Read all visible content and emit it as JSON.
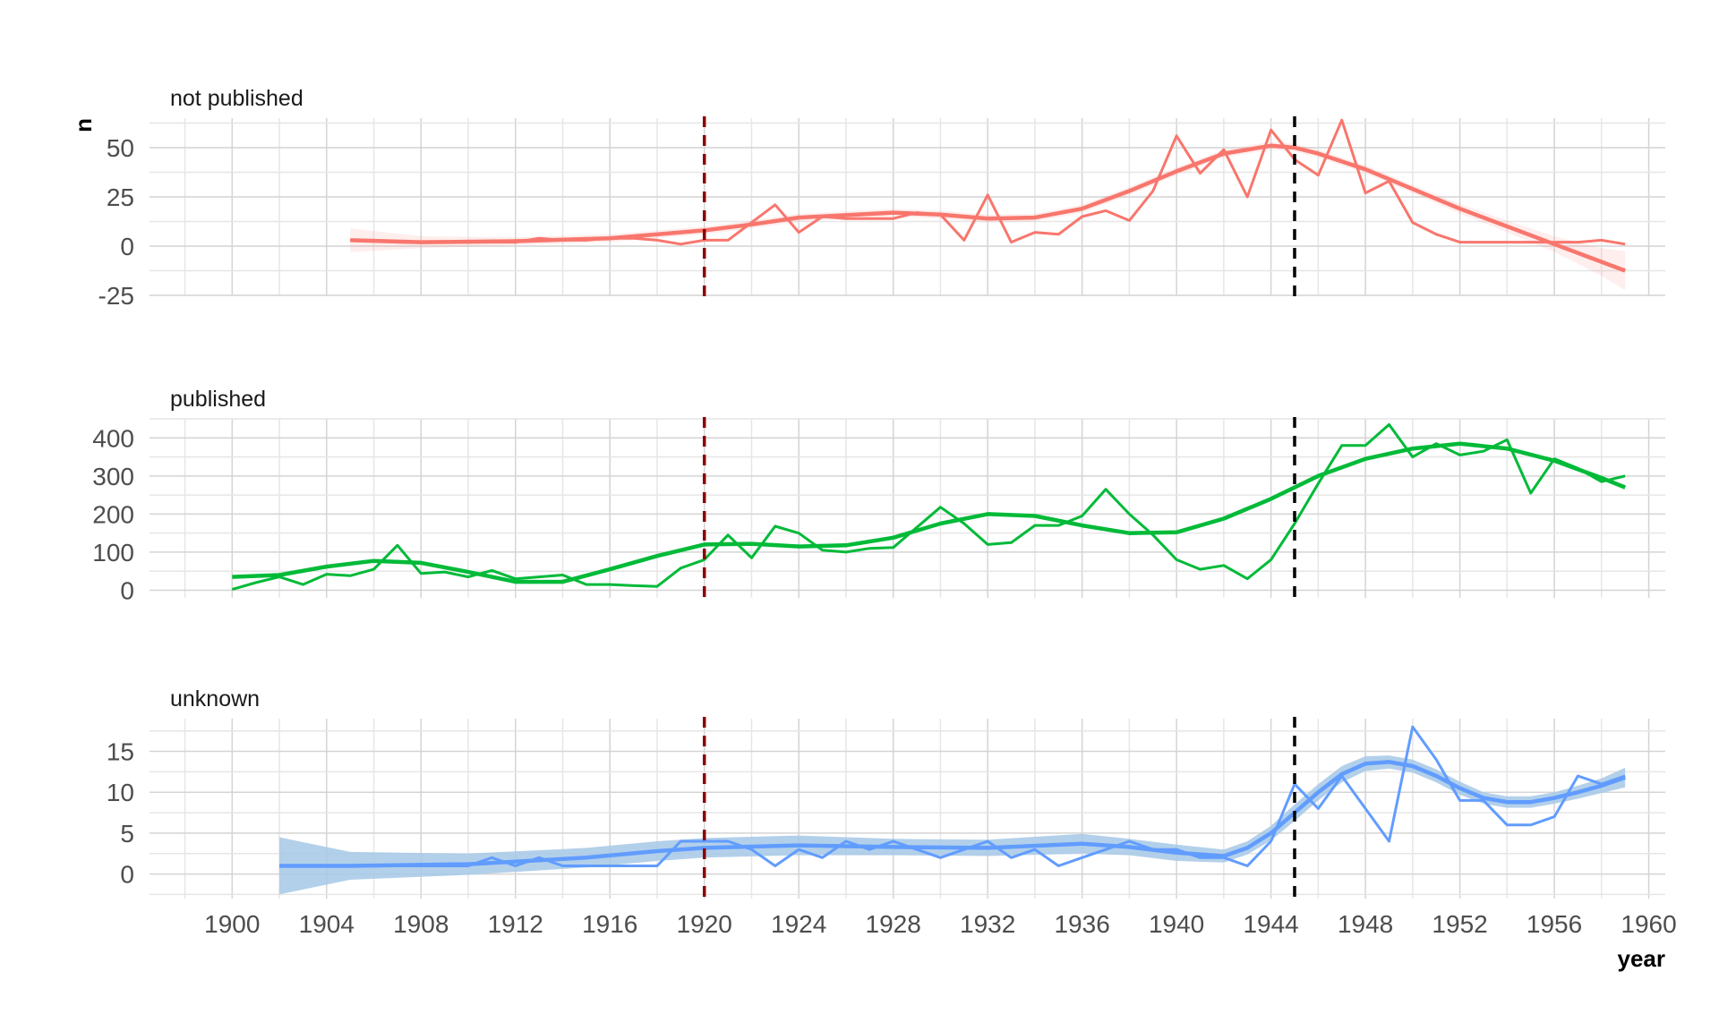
{
  "chart_data": {
    "type": "line",
    "xlabel": "year",
    "ylabel": "n",
    "xlim": [
      1900,
      1960
    ],
    "x_ticks": [
      1900,
      1904,
      1908,
      1912,
      1916,
      1920,
      1924,
      1928,
      1932,
      1936,
      1940,
      1944,
      1948,
      1952,
      1956,
      1960
    ],
    "grid": true,
    "vlines": [
      {
        "x": 1920,
        "color": "#8B0000",
        "style": "dashed"
      },
      {
        "x": 1945,
        "color": "#000000",
        "style": "dashed"
      }
    ],
    "panels": [
      {
        "title": "not published",
        "color": "#F8766D",
        "ylim": [
          -25,
          65
        ],
        "y_ticks": [
          -25,
          0,
          25,
          50
        ],
        "y_tick_labels": [
          "-25",
          "0",
          "25",
          "50"
        ],
        "raw": {
          "x": [
            1905,
            1906,
            1907,
            1908,
            1909,
            1910,
            1911,
            1912,
            1913,
            1914,
            1915,
            1916,
            1917,
            1918,
            1919,
            1920,
            1921,
            1922,
            1923,
            1924,
            1925,
            1926,
            1927,
            1928,
            1929,
            1930,
            1931,
            1932,
            1933,
            1934,
            1935,
            1936,
            1937,
            1938,
            1939,
            1940,
            1941,
            1942,
            1943,
            1944,
            1945,
            1946,
            1947,
            1948,
            1949,
            1950,
            1951,
            1952,
            1953,
            1954,
            1955,
            1956,
            1957,
            1958,
            1959
          ],
          "y": [
            3,
            3,
            2,
            2,
            2,
            2,
            2,
            2,
            4,
            3,
            3,
            4,
            4,
            3,
            1,
            3,
            3,
            12,
            21,
            7,
            15,
            14,
            14,
            14,
            17,
            16,
            3,
            26,
            2,
            7,
            6,
            15,
            18,
            13,
            28,
            56,
            37,
            49,
            25,
            59,
            44,
            36,
            64,
            27,
            33,
            12,
            6,
            2,
            2,
            2,
            2,
            2,
            2,
            3,
            1
          ]
        },
        "smooth": {
          "x": [
            1905,
            1908,
            1912,
            1916,
            1919,
            1920,
            1922,
            1924,
            1928,
            1930,
            1932,
            1934,
            1936,
            1938,
            1940,
            1942,
            1944,
            1945,
            1946,
            1948,
            1950,
            1952,
            1954,
            1956,
            1958,
            1959
          ],
          "y": [
            3,
            2,
            2.5,
            4,
            7,
            8,
            11,
            14.5,
            17,
            16,
            14,
            14.5,
            19,
            28,
            38,
            47,
            51,
            50,
            47,
            39,
            29,
            19,
            10,
            1,
            -8,
            -12.5
          ],
          "band_halfwidth": [
            6,
            3,
            2,
            2,
            2,
            2,
            2,
            2,
            2,
            2,
            2,
            2,
            2,
            2,
            2,
            2,
            2,
            2,
            2,
            2,
            2,
            2.5,
            3,
            4,
            7,
            10
          ]
        }
      },
      {
        "title": "published",
        "color": "#00BA38",
        "ylim": [
          -20,
          450
        ],
        "y_ticks": [
          0,
          100,
          200,
          300,
          400
        ],
        "y_tick_labels": [
          "0",
          "100",
          "200",
          "300",
          "400"
        ],
        "raw": {
          "x": [
            1900,
            1901,
            1902,
            1903,
            1904,
            1905,
            1906,
            1907,
            1908,
            1909,
            1910,
            1911,
            1912,
            1913,
            1914,
            1915,
            1916,
            1917,
            1918,
            1919,
            1920,
            1921,
            1922,
            1923,
            1924,
            1925,
            1926,
            1927,
            1928,
            1929,
            1930,
            1931,
            1932,
            1933,
            1934,
            1935,
            1936,
            1937,
            1938,
            1939,
            1940,
            1941,
            1942,
            1943,
            1944,
            1945,
            1946,
            1947,
            1948,
            1949,
            1950,
            1951,
            1952,
            1953,
            1954,
            1955,
            1956,
            1957,
            1958,
            1959
          ],
          "y": [
            2,
            20,
            35,
            15,
            42,
            38,
            55,
            118,
            44,
            48,
            35,
            52,
            30,
            35,
            40,
            15,
            15,
            12,
            10,
            58,
            80,
            145,
            85,
            168,
            150,
            105,
            100,
            110,
            112,
            165,
            218,
            175,
            120,
            125,
            170,
            170,
            195,
            265,
            200,
            145,
            80,
            55,
            65,
            30,
            80,
            175,
            280,
            380,
            380,
            435,
            350,
            385,
            355,
            365,
            395,
            255,
            345,
            320,
            285,
            300
          ]
        },
        "smooth": {
          "x": [
            1900,
            1902,
            1904,
            1906,
            1908,
            1910,
            1912,
            1914,
            1916,
            1918,
            1920,
            1922,
            1924,
            1926,
            1928,
            1930,
            1932,
            1934,
            1936,
            1938,
            1940,
            1942,
            1944,
            1946,
            1948,
            1950,
            1952,
            1954,
            1956,
            1958,
            1959
          ],
          "y": [
            35,
            40,
            62,
            77,
            72,
            48,
            22,
            22,
            55,
            90,
            120,
            122,
            115,
            118,
            138,
            175,
            200,
            195,
            170,
            150,
            152,
            188,
            240,
            300,
            345,
            372,
            385,
            372,
            340,
            295,
            270
          ]
        }
      },
      {
        "title": "unknown",
        "color": "#619CFF",
        "band_color": "#A6C8E6",
        "ylim": [
          -3,
          19
        ],
        "y_ticks": [
          0,
          5,
          10,
          15
        ],
        "y_tick_labels": [
          "0",
          "5",
          "10",
          "15"
        ],
        "raw": {
          "x": [
            1902,
            1903,
            1904,
            1905,
            1906,
            1907,
            1908,
            1909,
            1910,
            1911,
            1912,
            1913,
            1914,
            1915,
            1916,
            1917,
            1918,
            1919,
            1920,
            1921,
            1922,
            1923,
            1924,
            1925,
            1926,
            1927,
            1928,
            1929,
            1930,
            1931,
            1932,
            1933,
            1934,
            1935,
            1936,
            1937,
            1938,
            1939,
            1940,
            1941,
            1942,
            1943,
            1944,
            1945,
            1946,
            1947,
            1948,
            1949,
            1950,
            1951,
            1952,
            1953,
            1954,
            1955,
            1956,
            1957,
            1958,
            1959
          ],
          "y": [
            1,
            1,
            1,
            1,
            1,
            1,
            1,
            1,
            1,
            2,
            1,
            2,
            1,
            1,
            1,
            1,
            1,
            4,
            4,
            4,
            3,
            1,
            3,
            2,
            4,
            3,
            4,
            3,
            2,
            3,
            4,
            2,
            3,
            1,
            2,
            3,
            4,
            3,
            3,
            2,
            2,
            1,
            4,
            11,
            8,
            12,
            8,
            4,
            18,
            14,
            9,
            9,
            6,
            6,
            7,
            12,
            11,
            12
          ]
        },
        "smooth": {
          "x": [
            1902,
            1905,
            1910,
            1915,
            1918,
            1920,
            1924,
            1928,
            1932,
            1936,
            1938,
            1940,
            1942,
            1943,
            1944,
            1945,
            1946,
            1947,
            1948,
            1949,
            1950,
            1951,
            1952,
            1953,
            1954,
            1955,
            1956,
            1957,
            1958,
            1959
          ],
          "y": [
            1,
            1,
            1.2,
            2,
            2.8,
            3.2,
            3.5,
            3.3,
            3.2,
            3.7,
            3.3,
            2.6,
            2.2,
            3.2,
            5,
            7.5,
            10,
            12.2,
            13.5,
            13.7,
            13.2,
            12,
            10.5,
            9.3,
            8.8,
            8.8,
            9.3,
            10,
            10.8,
            11.8
          ],
          "band_halfwidth": [
            3.5,
            1.7,
            1.3,
            1.2,
            1.2,
            1.2,
            1.2,
            1.0,
            1.0,
            1.2,
            1.0,
            1.0,
            0.8,
            0.8,
            0.9,
            1.0,
            1.0,
            1.0,
            0.9,
            0.8,
            0.8,
            0.8,
            0.8,
            0.7,
            0.7,
            0.7,
            0.7,
            0.8,
            0.9,
            1.2
          ]
        }
      }
    ]
  }
}
